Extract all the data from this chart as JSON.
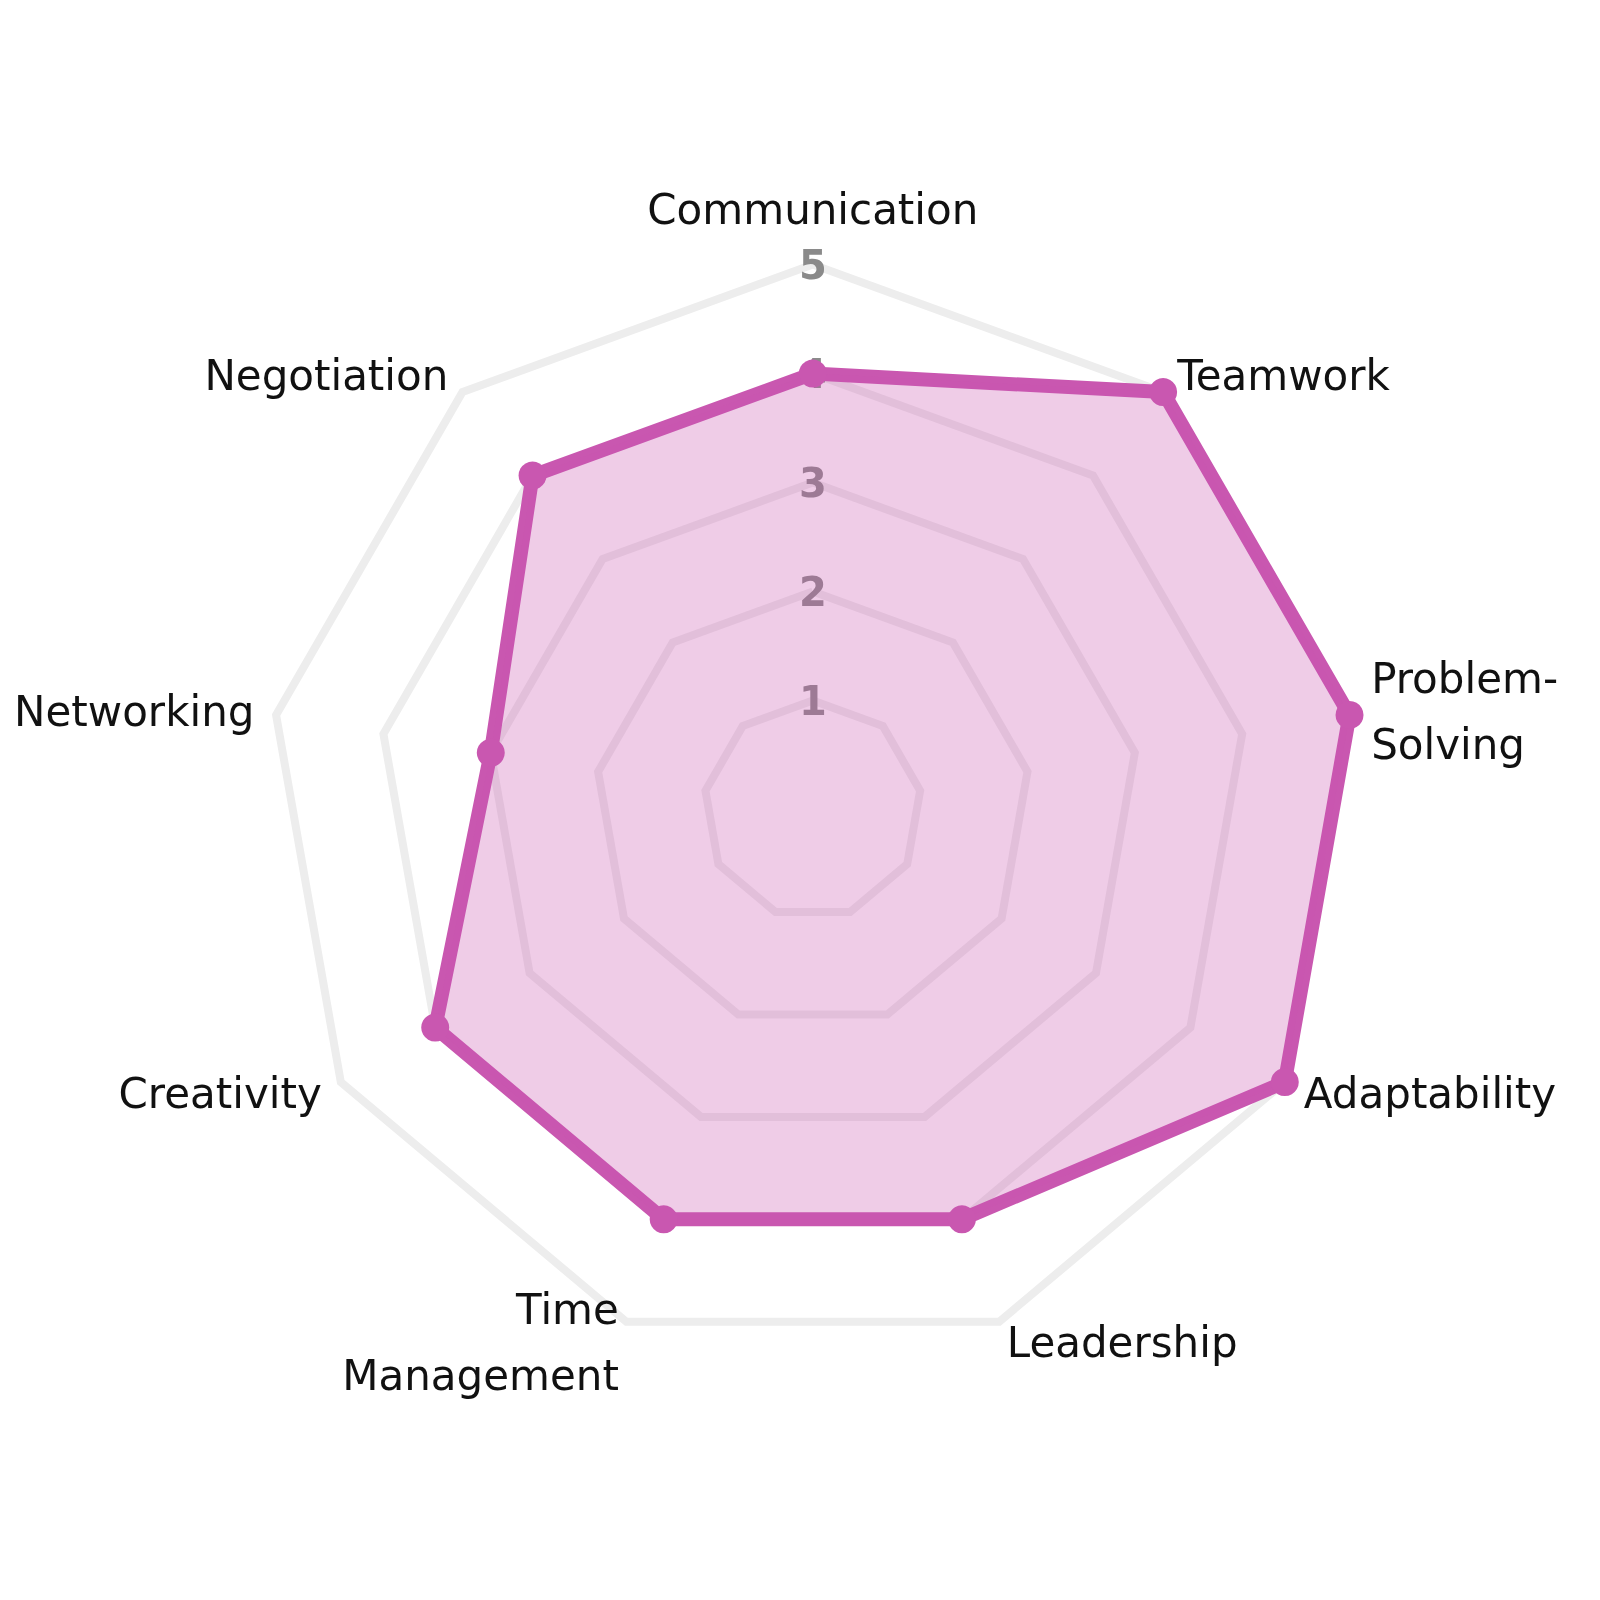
{
  "chart_data": {
    "type": "radar",
    "categories": [
      "Communication",
      "Teamwork",
      "Problem-Solving",
      "Adaptability",
      "Leadership",
      "Time Management",
      "Creativity",
      "Networking",
      "Negotiation"
    ],
    "series": [
      {
        "color": "#c957b0",
        "values": [
          4,
          5,
          5,
          5,
          4,
          4,
          4,
          3,
          4
        ]
      }
    ],
    "ylim": [
      0,
      5
    ],
    "yticks": [
      1,
      2,
      3,
      4,
      5
    ],
    "marker": "circle",
    "line_style": "solid",
    "grid": true
  }
}
